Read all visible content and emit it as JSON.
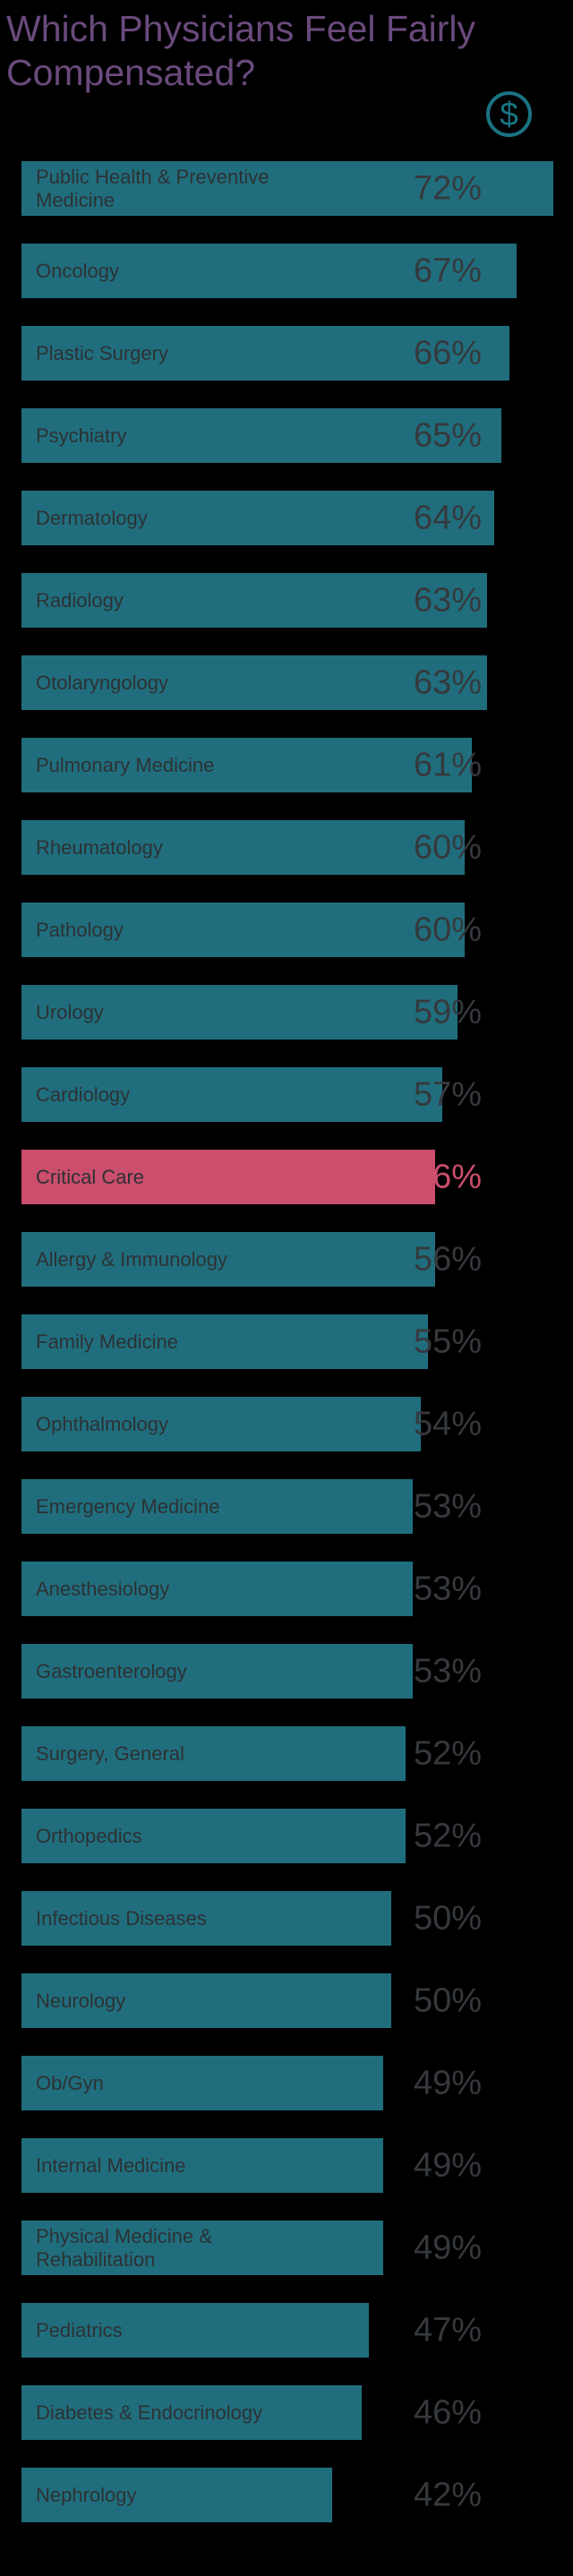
{
  "page": {
    "background": "#000000"
  },
  "title": {
    "line1": "Which Physicians Feel Fairly",
    "line2": "Compensated?"
  },
  "icon": {
    "name": "dollar-icon",
    "symbol": "$"
  },
  "chart_data": {
    "type": "bar",
    "orientation": "horizontal",
    "title": "Which Physicians Feel Fairly Compensated?",
    "unit": "%",
    "value_range": [
      0,
      100
    ],
    "grid": false,
    "legend": "none",
    "highlight_category": "Critical Care",
    "colors": {
      "bar": "#206e7d",
      "highlight_bar": "#cb4e6c",
      "bar_label": "#2d3134",
      "value_label": "#35393d",
      "highlight_value_label": "#cb4e6c",
      "title": "#6a4a7c",
      "icon": "#1a7382",
      "background": "#000000"
    },
    "bars": [
      {
        "label": "Public Health & Preventive Medicine",
        "value": 72,
        "highlight": false
      },
      {
        "label": "Oncology",
        "value": 67,
        "highlight": false
      },
      {
        "label": "Plastic Surgery",
        "value": 66,
        "highlight": false
      },
      {
        "label": "Psychiatry",
        "value": 65,
        "highlight": false
      },
      {
        "label": "Dermatology",
        "value": 64,
        "highlight": false
      },
      {
        "label": "Radiology",
        "value": 63,
        "highlight": false
      },
      {
        "label": "Otolaryngology",
        "value": 63,
        "highlight": false
      },
      {
        "label": "Pulmonary Medicine",
        "value": 61,
        "highlight": false
      },
      {
        "label": "Rheumatology",
        "value": 60,
        "highlight": false
      },
      {
        "label": "Pathology",
        "value": 60,
        "highlight": false
      },
      {
        "label": "Urology",
        "value": 59,
        "highlight": false
      },
      {
        "label": "Cardiology",
        "value": 57,
        "highlight": false
      },
      {
        "label": "Critical Care",
        "value": 56,
        "highlight": true
      },
      {
        "label": "Allergy & Immunology",
        "value": 56,
        "highlight": false
      },
      {
        "label": "Family Medicine",
        "value": 55,
        "highlight": false
      },
      {
        "label": "Ophthalmology",
        "value": 54,
        "highlight": false
      },
      {
        "label": "Emergency Medicine",
        "value": 53,
        "highlight": false
      },
      {
        "label": "Anesthesiology",
        "value": 53,
        "highlight": false
      },
      {
        "label": "Gastroenterology",
        "value": 53,
        "highlight": false
      },
      {
        "label": "Surgery, General",
        "value": 52,
        "highlight": false
      },
      {
        "label": "Orthopedics",
        "value": 52,
        "highlight": false
      },
      {
        "label": "Infectious Diseases",
        "value": 50,
        "highlight": false
      },
      {
        "label": "Neurology",
        "value": 50,
        "highlight": false
      },
      {
        "label": "Ob/Gyn",
        "value": 49,
        "highlight": false
      },
      {
        "label": "Internal Medicine",
        "value": 49,
        "highlight": false
      },
      {
        "label": "Physical Medicine & Rehabilitation",
        "value": 49,
        "highlight": false
      },
      {
        "label": "Pediatrics",
        "value": 47,
        "highlight": false
      },
      {
        "label": "Diabetes & Endocrinology",
        "value": 46,
        "highlight": false
      },
      {
        "label": "Nephrology",
        "value": 42,
        "highlight": false
      }
    ]
  }
}
